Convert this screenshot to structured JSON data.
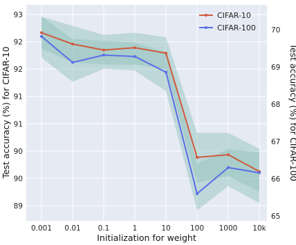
{
  "chart_data": {
    "type": "line",
    "categories": [
      "0.001",
      "0.01",
      "0.1",
      "1",
      "10",
      "100",
      "1000",
      "10k"
    ],
    "xlabel": "Initialization for weight",
    "ylabel_left": "Test accuracy (%) for CIFAR-10",
    "ylabel_right": "Test accuracy (%) for CIFAR-100",
    "left_ticks": [
      "93",
      "92",
      "92",
      "91",
      "91",
      "90",
      "90",
      "89"
    ],
    "left_axis": {
      "min": 88.8,
      "max": 93.3,
      "tick_values": [
        93.0,
        92.4,
        91.8,
        91.2,
        90.6,
        90.0,
        89.4,
        88.8
      ]
    },
    "right_ticks": [
      "70",
      "69",
      "68",
      "67",
      "66",
      "65"
    ],
    "right_axis": {
      "min": 65.0,
      "max": 70.3,
      "tick_values": [
        70,
        69,
        68,
        67,
        66,
        65
      ]
    },
    "grid": true,
    "legend_position": "top-right",
    "series": [
      {
        "name": "CIFAR-10",
        "axis": "left",
        "color": "#cf5a3c",
        "values": [
          92.6,
          92.35,
          92.22,
          92.27,
          92.15,
          89.86,
          89.92,
          89.55
        ],
        "band_low": [
          92.25,
          91.95,
          91.9,
          91.9,
          91.8,
          89.3,
          89.45,
          89.1
        ],
        "band_high": [
          92.95,
          92.75,
          92.55,
          92.6,
          92.5,
          90.4,
          90.4,
          90.05
        ]
      },
      {
        "name": "CIFAR-100",
        "axis": "right",
        "color": "#5a6ee8",
        "values": [
          69.82,
          69.12,
          69.32,
          69.28,
          68.86,
          65.6,
          66.3,
          66.16
        ],
        "band_low": [
          69.25,
          68.6,
          68.95,
          68.9,
          68.35,
          65.15,
          65.8,
          65.35
        ],
        "band_high": [
          70.35,
          69.75,
          69.7,
          69.65,
          69.4,
          66.4,
          66.8,
          66.7
        ]
      }
    ]
  }
}
